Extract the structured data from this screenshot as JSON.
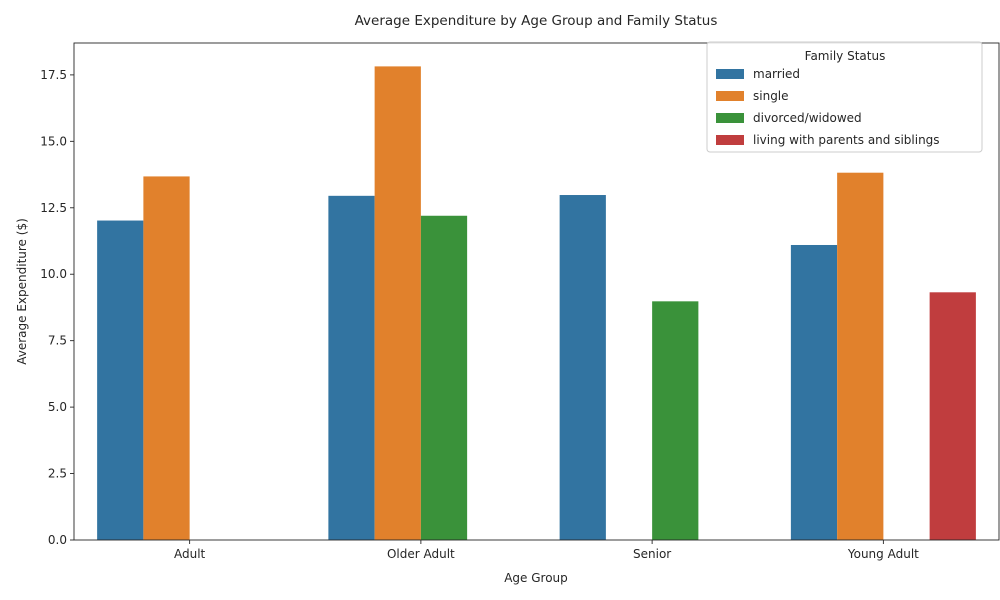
{
  "chart_data": {
    "type": "bar",
    "title": "Average Expenditure by Age Group and Family Status",
    "xlabel": "Age Group",
    "ylabel": "Average Expenditure ($)",
    "categories": [
      "Adult",
      "Older Adult",
      "Senior",
      "Young Adult"
    ],
    "ylim": [
      0,
      18.7
    ],
    "yticks": [
      "0.0",
      "2.5",
      "5.0",
      "7.5",
      "10.0",
      "12.5",
      "15.0",
      "17.5"
    ],
    "legend": {
      "title": "Family Status",
      "placement": "top-right"
    },
    "grid": false,
    "series": [
      {
        "name": "married",
        "color": "#3274a1",
        "values": [
          12.02,
          12.95,
          12.98,
          11.1
        ]
      },
      {
        "name": "single",
        "color": "#e1812c",
        "values": [
          13.68,
          17.82,
          null,
          13.82
        ]
      },
      {
        "name": "divorced/widowed",
        "color": "#3a923a",
        "values": [
          null,
          12.2,
          8.98,
          null
        ]
      },
      {
        "name": "living with parents and siblings",
        "color": "#c03d3e",
        "values": [
          null,
          null,
          null,
          9.32
        ]
      }
    ]
  }
}
